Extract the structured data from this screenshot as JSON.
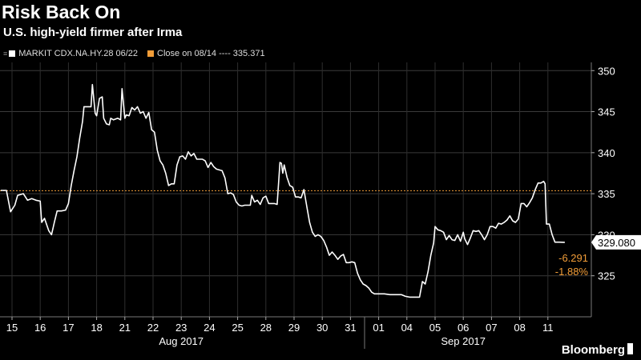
{
  "title": "Risk Back On",
  "subtitle": "U.S. high-yield firmer after Irma",
  "legend": [
    {
      "label": "MARKIT CDX.NA.HY.28 06/22",
      "color": "#ffffff"
    },
    {
      "label": "Close on 08/14 ---- 335.371",
      "color": "#f29d38"
    }
  ],
  "logo": "Bloomberg",
  "chart_data": {
    "type": "line",
    "title": "Risk Back On",
    "subtitle": "U.S. high-yield firmer after Irma",
    "x_categories": [
      "15",
      "16",
      "17",
      "18",
      "21",
      "22",
      "23",
      "24",
      "25",
      "28",
      "29",
      "30",
      "31",
      "01",
      "04",
      "05",
      "06",
      "07",
      "08",
      "11"
    ],
    "x_groups": [
      {
        "label": "Aug 2017",
        "from": "15",
        "to": "31"
      },
      {
        "label": "Sep 2017",
        "from": "01",
        "to": "11"
      }
    ],
    "ylim": [
      320,
      351
    ],
    "yticks": [
      325,
      330,
      335,
      340,
      345,
      350
    ],
    "grid": true,
    "legend_position": "top-left",
    "reference_line": {
      "value": 335.371,
      "label": "Close on 08/14",
      "color": "#f29d38"
    },
    "last_value": "329.080",
    "change": {
      "points": "-6.291",
      "percent": "-1.88%",
      "color": "#f29d38"
    },
    "series": [
      {
        "name": "MARKIT CDX.NA.HY.28 06/22",
        "color": "#ffffff",
        "points": [
          [
            -0.4,
            335.4
          ],
          [
            -0.2,
            335.4
          ],
          [
            -0.05,
            332.8
          ],
          [
            0.1,
            333.6
          ],
          [
            0.2,
            334.8
          ],
          [
            0.4,
            335.0
          ],
          [
            0.55,
            334.2
          ],
          [
            0.7,
            334.4
          ],
          [
            0.85,
            334.2
          ],
          [
            1.0,
            334.1
          ],
          [
            1.05,
            331.5
          ],
          [
            1.15,
            332.0
          ],
          [
            1.3,
            330.5
          ],
          [
            1.4,
            330.0
          ],
          [
            1.5,
            331.5
          ],
          [
            1.6,
            332.9
          ],
          [
            1.75,
            332.9
          ],
          [
            1.9,
            333.0
          ],
          [
            2.0,
            333.8
          ],
          [
            2.1,
            336.0
          ],
          [
            2.2,
            337.8
          ],
          [
            2.3,
            339.5
          ],
          [
            2.4,
            341.8
          ],
          [
            2.5,
            343.8
          ],
          [
            2.55,
            345.6
          ],
          [
            2.7,
            345.6
          ],
          [
            2.8,
            345.6
          ],
          [
            2.85,
            348.3
          ],
          [
            2.9,
            346.5
          ],
          [
            2.95,
            344.8
          ],
          [
            3.0,
            344.5
          ],
          [
            3.1,
            346.6
          ],
          [
            3.2,
            346.8
          ],
          [
            3.25,
            344.2
          ],
          [
            3.35,
            343.5
          ],
          [
            3.45,
            343.4
          ],
          [
            3.5,
            344.2
          ],
          [
            3.6,
            344.0
          ],
          [
            3.75,
            344.2
          ],
          [
            3.85,
            344.0
          ],
          [
            3.9,
            347.8
          ],
          [
            4.0,
            344.2
          ],
          [
            4.05,
            344.6
          ],
          [
            4.15,
            344.5
          ],
          [
            4.25,
            345.5
          ],
          [
            4.35,
            345.2
          ],
          [
            4.45,
            345.6
          ],
          [
            4.55,
            344.8
          ],
          [
            4.65,
            345.0
          ],
          [
            4.75,
            344.2
          ],
          [
            4.85,
            344.9
          ],
          [
            4.95,
            342.8
          ],
          [
            5.05,
            342.5
          ],
          [
            5.15,
            340.3
          ],
          [
            5.25,
            339.0
          ],
          [
            5.35,
            338.5
          ],
          [
            5.45,
            337.5
          ],
          [
            5.55,
            336.0
          ],
          [
            5.65,
            336.2
          ],
          [
            5.75,
            336.2
          ],
          [
            5.85,
            338.5
          ],
          [
            5.95,
            339.5
          ],
          [
            6.05,
            339.6
          ],
          [
            6.15,
            339.2
          ],
          [
            6.25,
            340.1
          ],
          [
            6.35,
            339.6
          ],
          [
            6.45,
            339.9
          ],
          [
            6.55,
            339.2
          ],
          [
            6.65,
            339.2
          ],
          [
            6.75,
            339.2
          ],
          [
            6.85,
            339.0
          ],
          [
            6.95,
            338.2
          ],
          [
            7.05,
            338.8
          ],
          [
            7.15,
            338.3
          ],
          [
            7.25,
            338.0
          ],
          [
            7.35,
            337.9
          ],
          [
            7.45,
            337.8
          ],
          [
            7.55,
            336.9
          ],
          [
            7.65,
            335.0
          ],
          [
            7.75,
            335.1
          ],
          [
            7.85,
            334.9
          ],
          [
            7.95,
            334.0
          ],
          [
            8.05,
            333.6
          ],
          [
            8.15,
            333.5
          ],
          [
            8.25,
            333.6
          ],
          [
            8.35,
            333.6
          ],
          [
            8.45,
            333.6
          ],
          [
            8.5,
            334.8
          ],
          [
            8.6,
            334.0
          ],
          [
            8.7,
            334.2
          ],
          [
            8.8,
            333.7
          ],
          [
            8.9,
            334.5
          ],
          [
            9.0,
            334.7
          ],
          [
            9.1,
            333.8
          ],
          [
            9.2,
            333.8
          ],
          [
            9.3,
            333.8
          ],
          [
            9.4,
            333.7
          ],
          [
            9.5,
            338.8
          ],
          [
            9.55,
            338.7
          ],
          [
            9.6,
            337.5
          ],
          [
            9.65,
            338.5
          ],
          [
            9.75,
            337.0
          ],
          [
            9.85,
            336.0
          ],
          [
            9.95,
            335.8
          ],
          [
            10.05,
            334.6
          ],
          [
            10.15,
            334.6
          ],
          [
            10.25,
            334.5
          ],
          [
            10.35,
            335.5
          ],
          [
            10.45,
            333.5
          ],
          [
            10.55,
            331.5
          ],
          [
            10.65,
            330.3
          ],
          [
            10.75,
            329.8
          ],
          [
            10.85,
            330.0
          ],
          [
            10.95,
            329.8
          ],
          [
            11.05,
            329.3
          ],
          [
            11.15,
            328.5
          ],
          [
            11.25,
            327.5
          ],
          [
            11.35,
            327.9
          ],
          [
            11.45,
            327.5
          ],
          [
            11.55,
            327.0
          ],
          [
            11.65,
            327.4
          ],
          [
            11.75,
            327.6
          ],
          [
            11.85,
            326.6
          ],
          [
            11.95,
            326.6
          ],
          [
            12.05,
            326.7
          ],
          [
            12.15,
            326.6
          ],
          [
            12.25,
            325.3
          ],
          [
            12.35,
            324.5
          ],
          [
            12.45,
            324.0
          ],
          [
            12.55,
            323.8
          ],
          [
            12.65,
            323.5
          ],
          [
            12.75,
            323.0
          ],
          [
            12.85,
            322.8
          ],
          [
            13.0,
            322.8
          ],
          [
            13.2,
            322.8
          ],
          [
            13.4,
            322.7
          ],
          [
            13.6,
            322.7
          ],
          [
            13.8,
            322.7
          ],
          [
            13.95,
            322.5
          ],
          [
            14.1,
            322.4
          ],
          [
            14.3,
            322.4
          ],
          [
            14.45,
            322.4
          ],
          [
            14.55,
            324.3
          ],
          [
            14.65,
            324.0
          ],
          [
            14.75,
            325.5
          ],
          [
            14.85,
            327.5
          ],
          [
            14.95,
            329.0
          ],
          [
            15.0,
            331.0
          ],
          [
            15.1,
            330.6
          ],
          [
            15.2,
            330.5
          ],
          [
            15.3,
            330.3
          ],
          [
            15.4,
            329.4
          ],
          [
            15.5,
            329.9
          ],
          [
            15.6,
            329.4
          ],
          [
            15.7,
            329.3
          ],
          [
            15.8,
            330.0
          ],
          [
            15.9,
            329.2
          ],
          [
            16.0,
            330.3
          ],
          [
            16.05,
            329.5
          ],
          [
            16.15,
            328.8
          ],
          [
            16.25,
            329.6
          ],
          [
            16.35,
            330.5
          ],
          [
            16.45,
            330.4
          ],
          [
            16.55,
            330.5
          ],
          [
            16.65,
            330.0
          ],
          [
            16.75,
            329.4
          ],
          [
            16.85,
            330.0
          ],
          [
            16.95,
            331.0
          ],
          [
            17.05,
            331.0
          ],
          [
            17.15,
            330.8
          ],
          [
            17.25,
            331.4
          ],
          [
            17.35,
            331.3
          ],
          [
            17.45,
            331.5
          ],
          [
            17.55,
            331.8
          ],
          [
            17.65,
            332.3
          ],
          [
            17.75,
            331.7
          ],
          [
            17.85,
            331.5
          ],
          [
            17.95,
            331.9
          ],
          [
            18.05,
            333.8
          ],
          [
            18.15,
            333.8
          ],
          [
            18.25,
            333.4
          ],
          [
            18.35,
            333.9
          ],
          [
            18.45,
            334.5
          ],
          [
            18.55,
            335.5
          ],
          [
            18.65,
            336.3
          ],
          [
            18.75,
            336.3
          ],
          [
            18.85,
            336.5
          ],
          [
            18.9,
            336.2
          ],
          [
            18.95,
            331.3
          ],
          [
            19.05,
            331.3
          ],
          [
            19.15,
            330.0
          ],
          [
            19.25,
            329.1
          ],
          [
            19.4,
            329.1
          ],
          [
            19.6,
            329.08
          ]
        ]
      }
    ]
  }
}
